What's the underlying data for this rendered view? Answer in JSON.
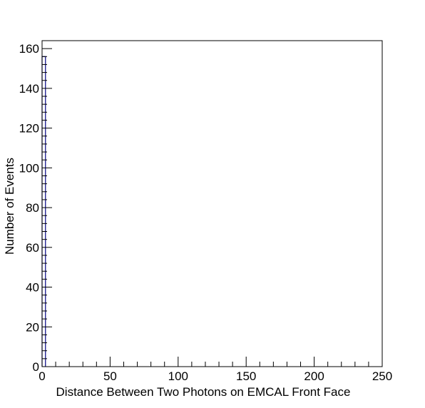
{
  "chart_data": {
    "type": "bar",
    "title": "",
    "xlabel": "Distance Between Two Photons on EMCAL Front Face",
    "ylabel": "Number of Events",
    "xlim": [
      0,
      250
    ],
    "ylim": [
      0,
      164
    ],
    "x_ticks": [
      0,
      50,
      100,
      150,
      200,
      250
    ],
    "y_ticks": [
      0,
      20,
      40,
      60,
      80,
      100,
      120,
      140,
      160
    ],
    "x_minor_step": 10,
    "y_minor_step": 4,
    "grid": false,
    "legend": "none",
    "series": [
      {
        "style": "histogram-step",
        "bins": [
          {
            "x0": 0,
            "x1": 2.5,
            "value": 156
          }
        ]
      }
    ],
    "colors": {
      "line": "#000080",
      "axis": "#000000",
      "background": "#ffffff"
    }
  }
}
